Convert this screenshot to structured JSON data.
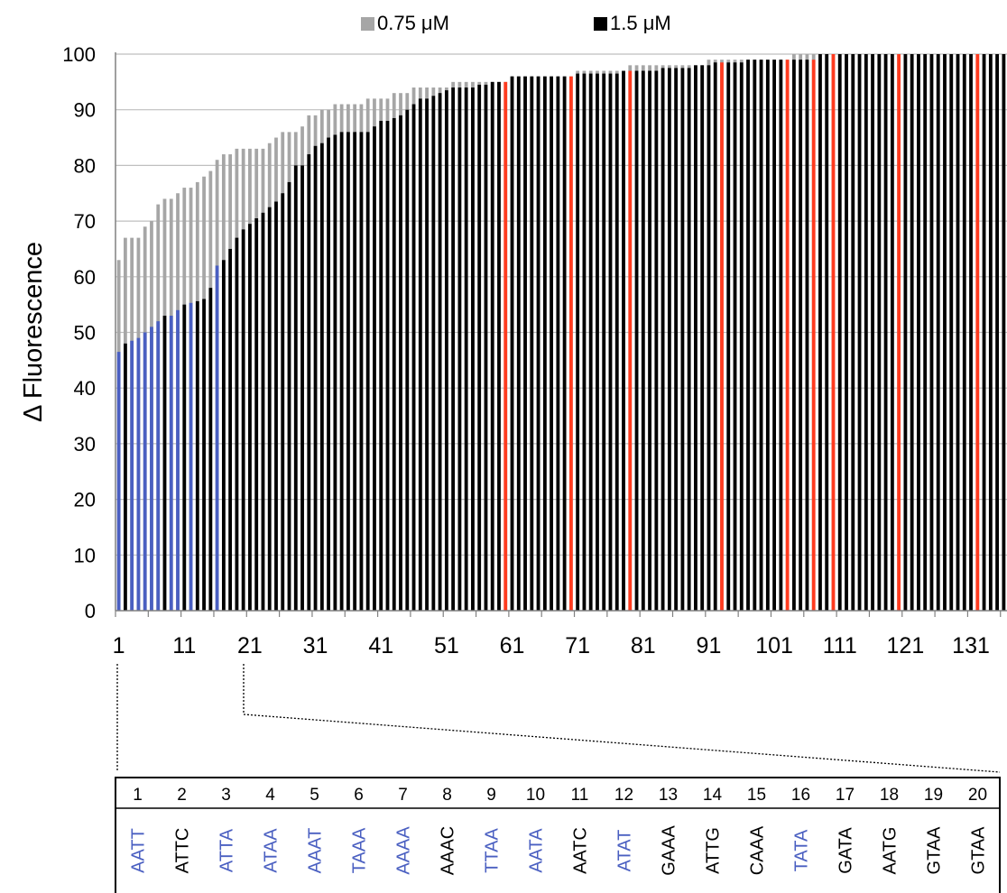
{
  "chart_data": {
    "type": "bar",
    "title": "",
    "xlabel": "",
    "ylabel": "Δ Fluorescence",
    "ylim": [
      0,
      100
    ],
    "y_ticks": [
      "0",
      "10",
      "20",
      "30",
      "40",
      "50",
      "60",
      "70",
      "80",
      "90",
      "100"
    ],
    "x_ticks": [
      "1",
      "11",
      "21",
      "31",
      "41",
      "51",
      "61",
      "71",
      "81",
      "91",
      "101",
      "111",
      "121",
      "131"
    ],
    "grid": true,
    "legend_placement": "top",
    "colors": {
      "series_low": "#a6a6a6",
      "series_high": "#000000",
      "highlight_blue": "#4a5fc1",
      "highlight_red": "#ff3b1f",
      "gridline": "#bfbfbf",
      "axis": "#808080"
    },
    "n_categories": 136,
    "series": [
      {
        "name": "0.75 μM",
        "values": [
          63,
          67,
          67,
          67,
          69,
          70,
          73,
          74,
          74,
          75,
          76,
          76,
          77,
          78,
          79,
          81,
          82,
          82,
          83,
          83,
          83,
          83,
          83,
          84,
          85,
          86,
          86,
          86,
          87,
          89,
          89,
          90,
          90,
          91,
          91,
          91,
          91,
          91,
          92,
          92,
          92,
          92,
          93,
          93,
          93,
          94,
          94,
          94,
          94,
          94,
          94,
          95,
          95,
          95,
          95,
          95,
          95,
          95,
          95,
          95,
          96,
          96,
          96,
          96,
          96,
          96,
          96,
          96,
          96,
          96,
          97,
          97,
          97,
          97,
          97,
          97,
          97,
          97,
          98,
          98,
          98,
          98,
          98,
          98,
          98,
          98,
          98,
          98,
          98,
          98,
          99,
          99,
          99,
          99,
          99,
          99,
          99,
          99,
          99,
          99,
          99,
          99,
          99,
          100,
          100,
          100,
          100,
          100,
          100,
          100,
          100,
          100,
          100,
          100,
          100,
          100,
          100,
          100,
          100,
          100,
          100,
          100,
          100,
          100,
          100,
          100,
          100,
          100,
          100,
          100,
          100,
          100,
          100,
          100,
          100,
          100
        ]
      },
      {
        "name": "1.5 μM",
        "values": [
          46.5,
          48,
          48.5,
          49,
          50,
          51,
          52,
          53,
          53,
          54,
          55,
          55.3,
          55.6,
          56,
          58,
          62,
          63,
          65,
          67,
          68.5,
          69.5,
          70.5,
          71.5,
          72.5,
          73.5,
          75,
          77,
          80,
          80,
          82,
          83.5,
          84,
          85,
          85.5,
          86,
          86,
          86,
          86,
          86,
          87,
          88,
          88,
          88.5,
          89,
          90,
          91,
          92,
          92,
          92.5,
          93,
          93.5,
          94,
          94,
          94,
          94,
          94.5,
          94.5,
          95,
          95,
          95,
          96,
          96,
          96,
          96,
          96,
          96,
          96,
          96,
          96,
          96,
          96.5,
          96.5,
          96.5,
          96.5,
          96.5,
          96.5,
          96.5,
          97,
          97,
          97,
          97,
          97,
          97,
          97.5,
          97.5,
          97.5,
          97.5,
          97.5,
          98,
          98,
          98,
          98.5,
          98.5,
          98.5,
          98.5,
          98.5,
          99,
          99,
          99,
          99,
          99,
          99,
          99,
          99,
          99,
          99,
          99,
          100,
          100,
          100,
          100,
          100,
          100,
          100,
          100,
          100,
          100,
          100,
          100,
          100,
          100,
          100,
          100,
          100,
          100,
          100,
          100,
          100,
          100,
          100,
          100,
          100,
          100,
          100,
          100,
          100,
          100,
          100,
          100,
          100,
          100,
          100
        ]
      }
    ],
    "highlights": {
      "blue_bars": [
        1,
        3,
        4,
        5,
        6,
        7,
        9,
        10,
        12,
        16
      ],
      "red_bars": [
        60,
        70,
        79,
        93,
        103,
        107,
        110,
        120,
        132
      ]
    },
    "detail_table": {
      "numbers": [
        "1",
        "2",
        "3",
        "4",
        "5",
        "6",
        "7",
        "8",
        "9",
        "10",
        "11",
        "12",
        "13",
        "14",
        "15",
        "16",
        "17",
        "18",
        "19",
        "20"
      ],
      "sequences": [
        "AATT",
        "ATTC",
        "ATTA",
        "ATAA",
        "AAAT",
        "TAAA",
        "AAAA",
        "AAAC",
        "TTAA",
        "AATA",
        "AATC",
        "ATAT",
        "GAAA",
        "ATTG",
        "CAAA",
        "TATA",
        "GATA",
        "AATG",
        "GTAA",
        "GTAA"
      ],
      "blue_columns": [
        1,
        3,
        4,
        5,
        6,
        7,
        9,
        10,
        12,
        16
      ]
    }
  }
}
